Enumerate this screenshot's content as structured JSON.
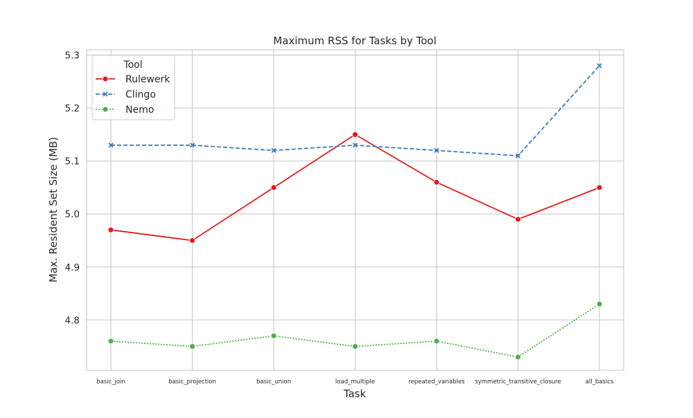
{
  "chart_data": {
    "type": "line",
    "title": "Maximum RSS for Tasks by Tool",
    "xlabel": "Task",
    "ylabel": "Max. Resident Set Size (MB)",
    "categories": [
      "basic_join",
      "basic_projection",
      "basic_union",
      "load_multiple",
      "repeated_variables",
      "symmetric_transitive_closure",
      "all_basics"
    ],
    "ylim": [
      4.705,
      5.31
    ],
    "yticks": [
      4.8,
      4.9,
      5.0,
      5.1,
      5.2,
      5.3
    ],
    "ytick_labels": [
      "4.8",
      "4.9",
      "5.0",
      "5.1",
      "5.2",
      "5.3"
    ],
    "grid": true,
    "legend": {
      "title": "Tool",
      "position": "top-left"
    },
    "series": [
      {
        "name": "Rulewerk",
        "values": [
          4.97,
          4.95,
          5.05,
          5.15,
          5.06,
          4.99,
          5.05
        ],
        "color": "#e41a1c",
        "linestyle": "solid",
        "marker": "circle"
      },
      {
        "name": "Clingo",
        "values": [
          5.13,
          5.13,
          5.12,
          5.13,
          5.12,
          5.11,
          5.28
        ],
        "color": "#377eb8",
        "linestyle": "dashed",
        "marker": "x"
      },
      {
        "name": "Nemo",
        "values": [
          4.76,
          4.75,
          4.77,
          4.75,
          4.76,
          4.73,
          4.83
        ],
        "color": "#4daf4a",
        "linestyle": "dotted",
        "marker": "circle"
      }
    ]
  }
}
